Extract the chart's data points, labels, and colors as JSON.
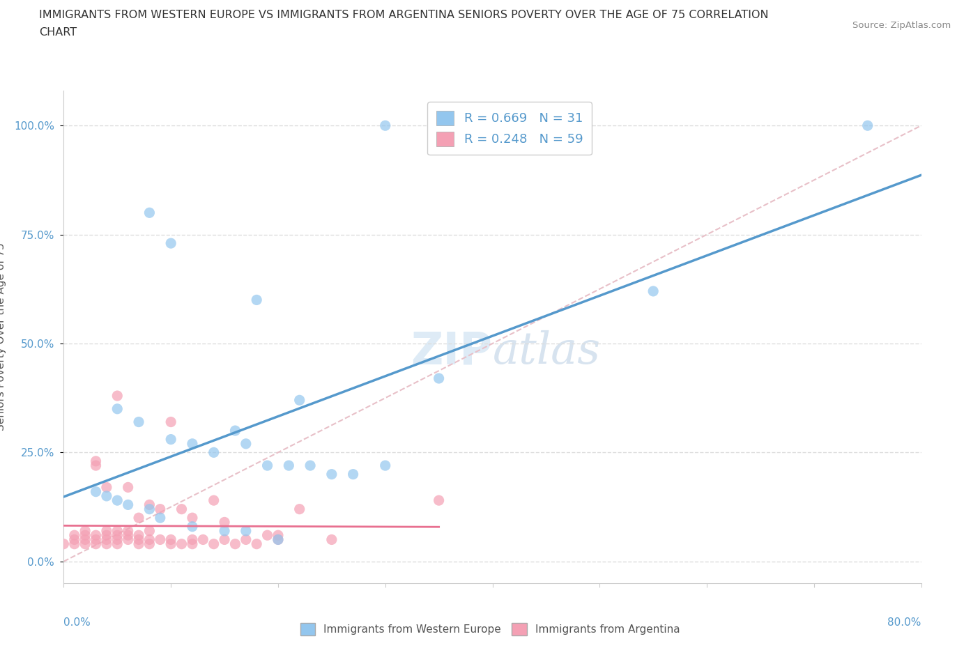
{
  "title_line1": "IMMIGRANTS FROM WESTERN EUROPE VS IMMIGRANTS FROM ARGENTINA SENIORS POVERTY OVER THE AGE OF 75 CORRELATION",
  "title_line2": "CHART",
  "source_text": "Source: ZipAtlas.com",
  "ylabel": "Seniors Poverty Over the Age of 75",
  "ytick_labels": [
    "0.0%",
    "25.0%",
    "50.0%",
    "75.0%",
    "100.0%"
  ],
  "ytick_values": [
    0.0,
    0.25,
    0.5,
    0.75,
    1.0
  ],
  "xmin": 0.0,
  "xmax": 0.8,
  "ymin": -0.05,
  "ymax": 1.08,
  "blue_color": "#93C6EE",
  "pink_color": "#F4A0B4",
  "blue_line_color": "#5599CC",
  "pink_line_color": "#E87090",
  "diagonal_color": "#E8C0C8",
  "legend_label_blue": "Immigrants from Western Europe",
  "legend_label_pink": "Immigrants from Argentina",
  "blue_scatter_x": [
    0.3,
    0.08,
    0.1,
    0.18,
    0.22,
    0.05,
    0.07,
    0.1,
    0.12,
    0.14,
    0.16,
    0.17,
    0.19,
    0.21,
    0.23,
    0.25,
    0.27,
    0.3,
    0.03,
    0.04,
    0.05,
    0.06,
    0.08,
    0.09,
    0.12,
    0.15,
    0.17,
    0.2,
    0.55,
    0.75,
    0.35
  ],
  "blue_scatter_y": [
    1.0,
    0.8,
    0.73,
    0.6,
    0.37,
    0.35,
    0.32,
    0.28,
    0.27,
    0.25,
    0.3,
    0.27,
    0.22,
    0.22,
    0.22,
    0.2,
    0.2,
    0.22,
    0.16,
    0.15,
    0.14,
    0.13,
    0.12,
    0.1,
    0.08,
    0.07,
    0.07,
    0.05,
    0.62,
    1.0,
    0.42
  ],
  "pink_scatter_x": [
    0.0,
    0.01,
    0.01,
    0.01,
    0.02,
    0.02,
    0.02,
    0.02,
    0.03,
    0.03,
    0.03,
    0.03,
    0.03,
    0.04,
    0.04,
    0.04,
    0.04,
    0.04,
    0.05,
    0.05,
    0.05,
    0.05,
    0.05,
    0.06,
    0.06,
    0.06,
    0.06,
    0.07,
    0.07,
    0.07,
    0.07,
    0.08,
    0.08,
    0.08,
    0.08,
    0.09,
    0.09,
    0.1,
    0.1,
    0.1,
    0.11,
    0.11,
    0.12,
    0.12,
    0.12,
    0.13,
    0.14,
    0.14,
    0.15,
    0.15,
    0.16,
    0.17,
    0.18,
    0.19,
    0.2,
    0.2,
    0.22,
    0.25,
    0.35
  ],
  "pink_scatter_y": [
    0.04,
    0.04,
    0.05,
    0.06,
    0.04,
    0.05,
    0.06,
    0.07,
    0.04,
    0.05,
    0.06,
    0.22,
    0.23,
    0.04,
    0.05,
    0.06,
    0.07,
    0.17,
    0.04,
    0.05,
    0.06,
    0.07,
    0.38,
    0.05,
    0.06,
    0.07,
    0.17,
    0.04,
    0.05,
    0.06,
    0.1,
    0.04,
    0.05,
    0.07,
    0.13,
    0.05,
    0.12,
    0.04,
    0.05,
    0.32,
    0.04,
    0.12,
    0.04,
    0.05,
    0.1,
    0.05,
    0.04,
    0.14,
    0.05,
    0.09,
    0.04,
    0.05,
    0.04,
    0.06,
    0.05,
    0.06,
    0.12,
    0.05,
    0.14
  ],
  "bg_color": "#ffffff",
  "grid_color": "#dddddd"
}
